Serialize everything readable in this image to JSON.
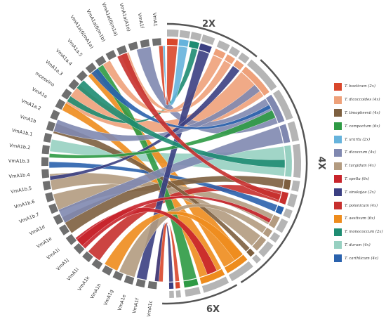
{
  "ploidy_groups": [
    {
      "label": "2X"
    },
    {
      "label": "4X"
    },
    {
      "label": "6X"
    }
  ],
  "gene_labels": [
    "VmA1c",
    "VmA1f",
    "VmA1e",
    "VmA1g",
    "VmA1h",
    "VmA1k",
    "VmA1l",
    "VmA1j",
    "VmA1i",
    "VmA1e",
    "VmA1d",
    "VmA1b.7",
    "VmA1b.6",
    "VmA1b.5",
    "VmA1b.4",
    "VmA1b.3",
    "VmA1b.2",
    "VmA1b.1",
    "VmA1b",
    "VmA1a.2",
    "VmA1a",
    "mcesxino",
    "VmA1a.3",
    "VmA1a.4",
    "VmA1a.5",
    "VmA1a(6(mA1a)",
    "VmA1a(6(m1b)",
    "VmA1a(6(m1a)",
    "VmA1a(A1e)",
    "VmA1f",
    "VmA1"
  ],
  "legend": [
    {
      "label": "T. boeticum (2x)",
      "color": "#d9472b"
    },
    {
      "label": "T. dicoccoides (4x)",
      "color": "#eea17a"
    },
    {
      "label": "T. timopheevii (4x)",
      "color": "#7d5f3f"
    },
    {
      "label": "T. compactum (6x)",
      "color": "#2e9a44"
    },
    {
      "label": "T. urartu (2x)",
      "color": "#66b3dc"
    },
    {
      "label": "T. dicoccum (4x)",
      "color": "#8088b0"
    },
    {
      "label": "T. turgidum (4x)",
      "color": "#b39b80"
    },
    {
      "label": "T. spelta (6x)",
      "color": "#c8242b"
    },
    {
      "label": "T. sinskajae (2x)",
      "color": "#3b3f82"
    },
    {
      "label": "T. polonicum (4x)",
      "color": "#c7302e"
    },
    {
      "label": "T. aestivum (6x)",
      "color": "#ee8c1d"
    },
    {
      "label": "T. monococcum (2x)",
      "color": "#1e8c72"
    },
    {
      "label": "T. durum (4x)",
      "color": "#97d0c1"
    },
    {
      "label": "T. carthlicum (4x)",
      "color": "#2a62ad"
    }
  ]
}
